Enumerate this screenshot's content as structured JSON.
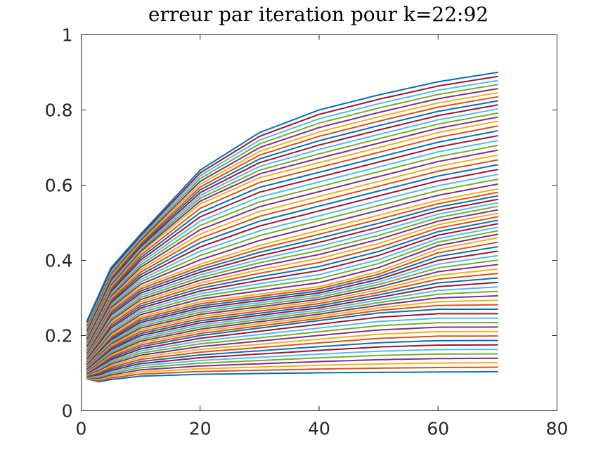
{
  "chart_data": {
    "type": "line",
    "title": "erreur par iteration pour k=22:92",
    "xlabel": "",
    "ylabel": "",
    "xlim": [
      0,
      80
    ],
    "ylim": [
      0,
      1
    ],
    "x_ticks": [
      "0",
      "20",
      "40",
      "60",
      "80"
    ],
    "y_ticks": [
      "0",
      "0.2",
      "0.4",
      "0.6",
      "0.8",
      "1"
    ],
    "grid": false,
    "legend": "none",
    "x_range_of_series": [
      1,
      70
    ],
    "series_count": 71,
    "series_colors": [
      "#0072bd",
      "#d95319",
      "#edb120",
      "#7e2f8e",
      "#77ac30",
      "#4dbeee",
      "#a2142f"
    ],
    "series_summary": {
      "k": [
        22,
        92
      ],
      "start_values_range": [
        0.08,
        0.24
      ],
      "minimum_near_x": 4,
      "minimum_value": 0.075,
      "end_values_range": [
        0.1,
        0.9
      ]
    },
    "series": [
      {
        "k": 92,
        "x": [
          1,
          5,
          10,
          20,
          30,
          40,
          50,
          60,
          70
        ],
        "y": [
          0.24,
          0.38,
          0.47,
          0.64,
          0.74,
          0.8,
          0.84,
          0.875,
          0.9
        ]
      },
      {
        "k": 80,
        "x": [
          1,
          5,
          10,
          20,
          30,
          40,
          50,
          60,
          70
        ],
        "y": [
          0.2,
          0.33,
          0.42,
          0.55,
          0.62,
          0.66,
          0.7,
          0.74,
          0.77
        ]
      },
      {
        "k": 66,
        "x": [
          1,
          5,
          10,
          20,
          30,
          40,
          50,
          60,
          70
        ],
        "y": [
          0.16,
          0.27,
          0.33,
          0.39,
          0.44,
          0.48,
          0.52,
          0.56,
          0.59
        ]
      },
      {
        "k": 52,
        "x": [
          1,
          5,
          10,
          20,
          30,
          40,
          50,
          60,
          70
        ],
        "y": [
          0.13,
          0.2,
          0.25,
          0.29,
          0.31,
          0.33,
          0.37,
          0.43,
          0.46
        ]
      },
      {
        "k": 36,
        "x": [
          1,
          5,
          10,
          20,
          30,
          40,
          50,
          60,
          70
        ],
        "y": [
          0.1,
          0.14,
          0.17,
          0.2,
          0.22,
          0.24,
          0.26,
          0.27,
          0.27
        ]
      },
      {
        "k": 22,
        "x": [
          1,
          3,
          5,
          10,
          20,
          30,
          40,
          50,
          60,
          70
        ],
        "y": [
          0.085,
          0.077,
          0.083,
          0.092,
          0.097,
          0.099,
          0.101,
          0.102,
          0.103,
          0.104
        ]
      }
    ]
  }
}
